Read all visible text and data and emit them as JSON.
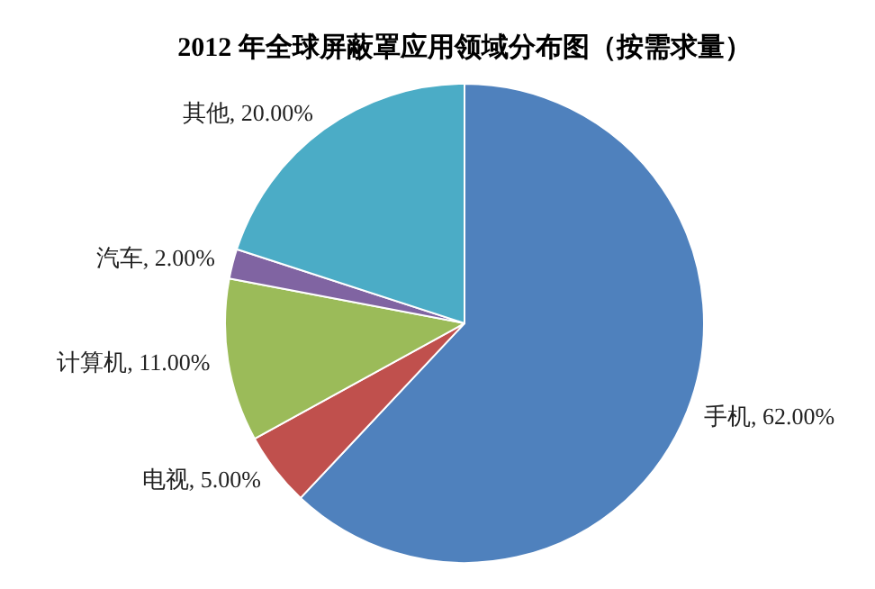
{
  "chart_data": {
    "type": "pie",
    "title": "2012 年全球屏蔽罩应用领域分布图（按需求量）",
    "categories": [
      "手机",
      "电视",
      "计算机",
      "汽车",
      "其他"
    ],
    "values": [
      62,
      5,
      11,
      2,
      20
    ],
    "value_labels": [
      "62.00%",
      "5.00%",
      "11.00%",
      "2.00%",
      "20.00%"
    ],
    "colors": [
      "#4f81bd",
      "#c0504d",
      "#9bbb59",
      "#8064a2",
      "#4bacc6"
    ],
    "legend": false
  }
}
